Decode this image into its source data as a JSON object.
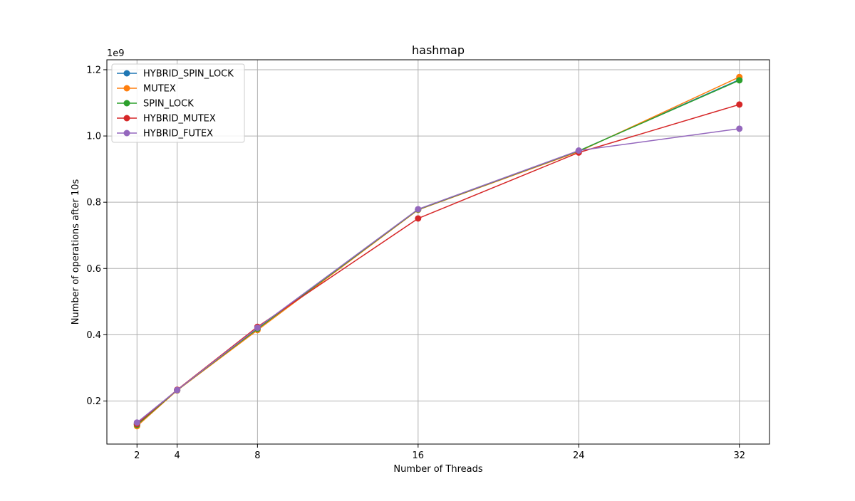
{
  "chart_data": {
    "type": "line",
    "title": "hashmap",
    "xlabel": "Number of Threads",
    "ylabel": "Number of operations after 10s",
    "y_offset_label": "1e9",
    "x": [
      2,
      4,
      8,
      16,
      24,
      32
    ],
    "x_ticks": [
      2,
      4,
      8,
      16,
      24,
      32
    ],
    "y_ticks": [
      "0.2",
      "0.4",
      "0.6",
      "0.8",
      "1.0",
      "1.2"
    ],
    "xlim": [
      0.5,
      33.5
    ],
    "ylim": [
      0.07,
      1.23
    ],
    "grid": true,
    "legend_position": "top-left",
    "series": [
      {
        "name": "HYBRID_SPIN_LOCK",
        "color": "#1f77b4",
        "values": [
          0.13,
          0.232,
          0.418,
          0.778,
          0.955,
          1.17
        ]
      },
      {
        "name": "MUTEX",
        "color": "#ff7f0e",
        "values": [
          0.124,
          0.232,
          0.414,
          0.777,
          0.953,
          1.178
        ]
      },
      {
        "name": "SPIN_LOCK",
        "color": "#2ca02c",
        "values": [
          0.128,
          0.233,
          0.418,
          0.778,
          0.955,
          1.168
        ]
      },
      {
        "name": "HYBRID_MUTEX",
        "color": "#d62728",
        "values": [
          0.131,
          0.234,
          0.424,
          0.751,
          0.95,
          1.095
        ]
      },
      {
        "name": "HYBRID_FUTEX",
        "color": "#9467bd",
        "values": [
          0.135,
          0.233,
          0.421,
          0.779,
          0.956,
          1.022
        ]
      }
    ]
  }
}
